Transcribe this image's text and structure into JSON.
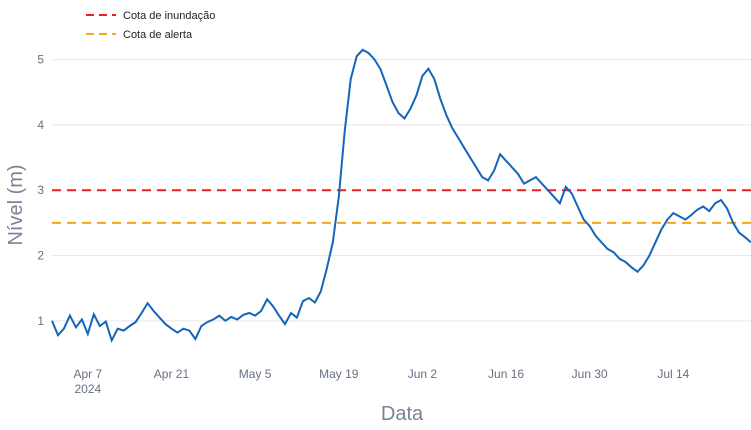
{
  "chart_data": {
    "type": "line",
    "title": "",
    "xlabel": "Data",
    "ylabel": "Nível (m)",
    "xlim": [
      "2024-04-01",
      "2024-07-27"
    ],
    "ylim": [
      0.4,
      5.3
    ],
    "grid": true,
    "legend_position": "top-left",
    "x_ticks": [
      {
        "date": "2024-04-07",
        "label": "Apr 7",
        "sublabel": "2024"
      },
      {
        "date": "2024-04-21",
        "label": "Apr 21"
      },
      {
        "date": "2024-05-05",
        "label": "May 5"
      },
      {
        "date": "2024-05-19",
        "label": "May 19"
      },
      {
        "date": "2024-06-02",
        "label": "Jun 2"
      },
      {
        "date": "2024-06-16",
        "label": "Jun 16"
      },
      {
        "date": "2024-06-30",
        "label": "Jun 30"
      },
      {
        "date": "2024-07-14",
        "label": "Jul 14"
      }
    ],
    "y_ticks": [
      1,
      2,
      3,
      4,
      5
    ],
    "reference_lines": [
      {
        "name": "Cota de inundação",
        "value": 3.0,
        "color": "#e8201f",
        "style": "dashed"
      },
      {
        "name": "Cota de alerta",
        "value": 2.5,
        "color": "#f0a81c",
        "style": "dashed"
      }
    ],
    "series": [
      {
        "color": "#1565b8",
        "points": [
          [
            "2024-04-01",
            1.0
          ],
          [
            "2024-04-02",
            0.78
          ],
          [
            "2024-04-03",
            0.88
          ],
          [
            "2024-04-04",
            1.08
          ],
          [
            "2024-04-05",
            0.9
          ],
          [
            "2024-04-06",
            1.02
          ],
          [
            "2024-04-07",
            0.8
          ],
          [
            "2024-04-08",
            1.1
          ],
          [
            "2024-04-09",
            0.92
          ],
          [
            "2024-04-10",
            0.99
          ],
          [
            "2024-04-11",
            0.7
          ],
          [
            "2024-04-12",
            0.88
          ],
          [
            "2024-04-13",
            0.85
          ],
          [
            "2024-04-14",
            0.92
          ],
          [
            "2024-04-15",
            0.98
          ],
          [
            "2024-04-16",
            1.12
          ],
          [
            "2024-04-17",
            1.27
          ],
          [
            "2024-04-18",
            1.15
          ],
          [
            "2024-04-19",
            1.05
          ],
          [
            "2024-04-20",
            0.95
          ],
          [
            "2024-04-21",
            0.88
          ],
          [
            "2024-04-22",
            0.82
          ],
          [
            "2024-04-23",
            0.88
          ],
          [
            "2024-04-24",
            0.85
          ],
          [
            "2024-04-25",
            0.72
          ],
          [
            "2024-04-26",
            0.92
          ],
          [
            "2024-04-27",
            0.98
          ],
          [
            "2024-04-28",
            1.02
          ],
          [
            "2024-04-29",
            1.08
          ],
          [
            "2024-04-30",
            1.0
          ],
          [
            "2024-05-01",
            1.06
          ],
          [
            "2024-05-02",
            1.02
          ],
          [
            "2024-05-03",
            1.09
          ],
          [
            "2024-05-04",
            1.12
          ],
          [
            "2024-05-05",
            1.08
          ],
          [
            "2024-05-06",
            1.15
          ],
          [
            "2024-05-07",
            1.33
          ],
          [
            "2024-05-08",
            1.22
          ],
          [
            "2024-05-09",
            1.08
          ],
          [
            "2024-05-10",
            0.95
          ],
          [
            "2024-05-11",
            1.12
          ],
          [
            "2024-05-12",
            1.05
          ],
          [
            "2024-05-13",
            1.3
          ],
          [
            "2024-05-14",
            1.35
          ],
          [
            "2024-05-15",
            1.28
          ],
          [
            "2024-05-16",
            1.45
          ],
          [
            "2024-05-17",
            1.8
          ],
          [
            "2024-05-18",
            2.2
          ],
          [
            "2024-05-19",
            2.9
          ],
          [
            "2024-05-20",
            3.9
          ],
          [
            "2024-05-21",
            4.7
          ],
          [
            "2024-05-22",
            5.05
          ],
          [
            "2024-05-23",
            5.15
          ],
          [
            "2024-05-24",
            5.1
          ],
          [
            "2024-05-25",
            5.0
          ],
          [
            "2024-05-26",
            4.85
          ],
          [
            "2024-05-27",
            4.6
          ],
          [
            "2024-05-28",
            4.35
          ],
          [
            "2024-05-29",
            4.18
          ],
          [
            "2024-05-30",
            4.1
          ],
          [
            "2024-05-31",
            4.25
          ],
          [
            "2024-06-01",
            4.45
          ],
          [
            "2024-06-02",
            4.75
          ],
          [
            "2024-06-03",
            4.86
          ],
          [
            "2024-06-04",
            4.7
          ],
          [
            "2024-06-05",
            4.4
          ],
          [
            "2024-06-06",
            4.15
          ],
          [
            "2024-06-07",
            3.95
          ],
          [
            "2024-06-08",
            3.8
          ],
          [
            "2024-06-09",
            3.65
          ],
          [
            "2024-06-10",
            3.5
          ],
          [
            "2024-06-11",
            3.35
          ],
          [
            "2024-06-12",
            3.2
          ],
          [
            "2024-06-13",
            3.15
          ],
          [
            "2024-06-14",
            3.3
          ],
          [
            "2024-06-15",
            3.55
          ],
          [
            "2024-06-16",
            3.45
          ],
          [
            "2024-06-17",
            3.35
          ],
          [
            "2024-06-18",
            3.25
          ],
          [
            "2024-06-19",
            3.1
          ],
          [
            "2024-06-20",
            3.15
          ],
          [
            "2024-06-21",
            3.2
          ],
          [
            "2024-06-22",
            3.1
          ],
          [
            "2024-06-23",
            3.0
          ],
          [
            "2024-06-24",
            2.9
          ],
          [
            "2024-06-25",
            2.8
          ],
          [
            "2024-06-26",
            3.05
          ],
          [
            "2024-06-27",
            2.95
          ],
          [
            "2024-06-28",
            2.75
          ],
          [
            "2024-06-29",
            2.55
          ],
          [
            "2024-06-30",
            2.45
          ],
          [
            "2024-07-01",
            2.3
          ],
          [
            "2024-07-02",
            2.2
          ],
          [
            "2024-07-03",
            2.1
          ],
          [
            "2024-07-04",
            2.05
          ],
          [
            "2024-07-05",
            1.95
          ],
          [
            "2024-07-06",
            1.9
          ],
          [
            "2024-07-07",
            1.82
          ],
          [
            "2024-07-08",
            1.75
          ],
          [
            "2024-07-09",
            1.85
          ],
          [
            "2024-07-10",
            2.0
          ],
          [
            "2024-07-11",
            2.2
          ],
          [
            "2024-07-12",
            2.4
          ],
          [
            "2024-07-13",
            2.55
          ],
          [
            "2024-07-14",
            2.65
          ],
          [
            "2024-07-15",
            2.6
          ],
          [
            "2024-07-16",
            2.55
          ],
          [
            "2024-07-17",
            2.62
          ],
          [
            "2024-07-18",
            2.7
          ],
          [
            "2024-07-19",
            2.75
          ],
          [
            "2024-07-20",
            2.68
          ],
          [
            "2024-07-21",
            2.8
          ],
          [
            "2024-07-22",
            2.85
          ],
          [
            "2024-07-23",
            2.72
          ],
          [
            "2024-07-24",
            2.5
          ],
          [
            "2024-07-25",
            2.35
          ],
          [
            "2024-07-26",
            2.28
          ],
          [
            "2024-07-27",
            2.2
          ]
        ]
      }
    ]
  }
}
